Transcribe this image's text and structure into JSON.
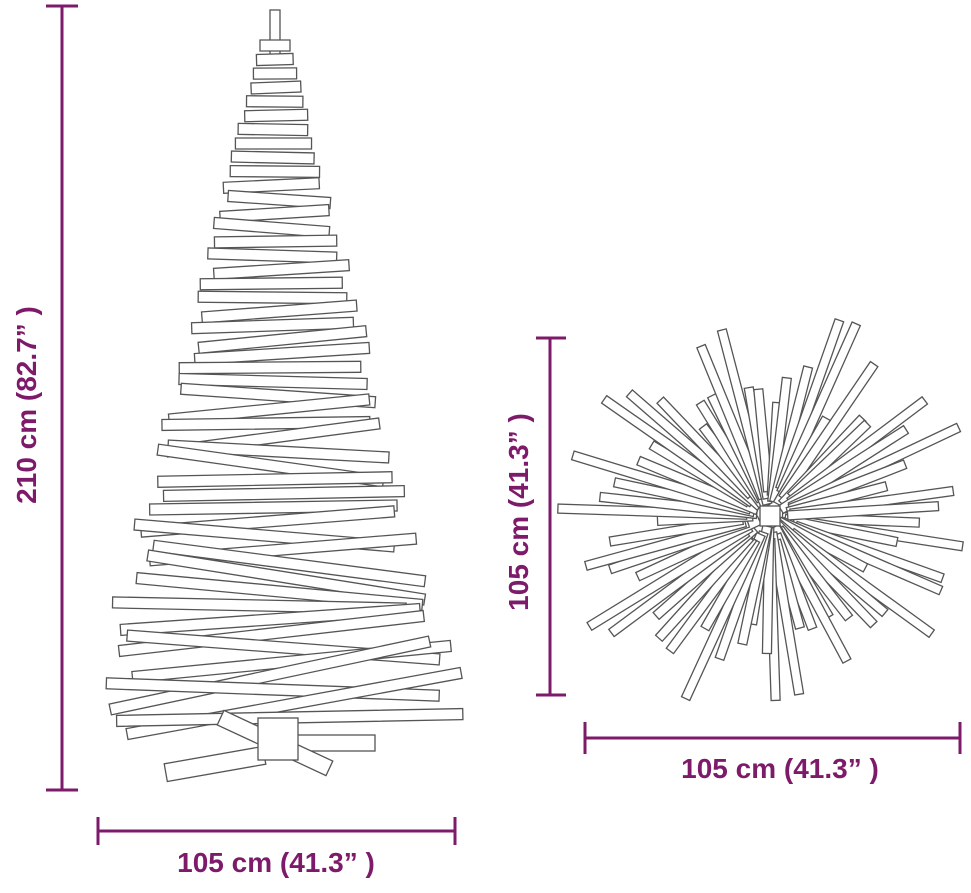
{
  "dimensions": {
    "tree_height": "210 cm (82.7” )",
    "tree_width": "105 cm (41.3” )",
    "top_view_height": "105 cm (41.3” )",
    "top_view_width": "105 cm (41.3” )"
  }
}
